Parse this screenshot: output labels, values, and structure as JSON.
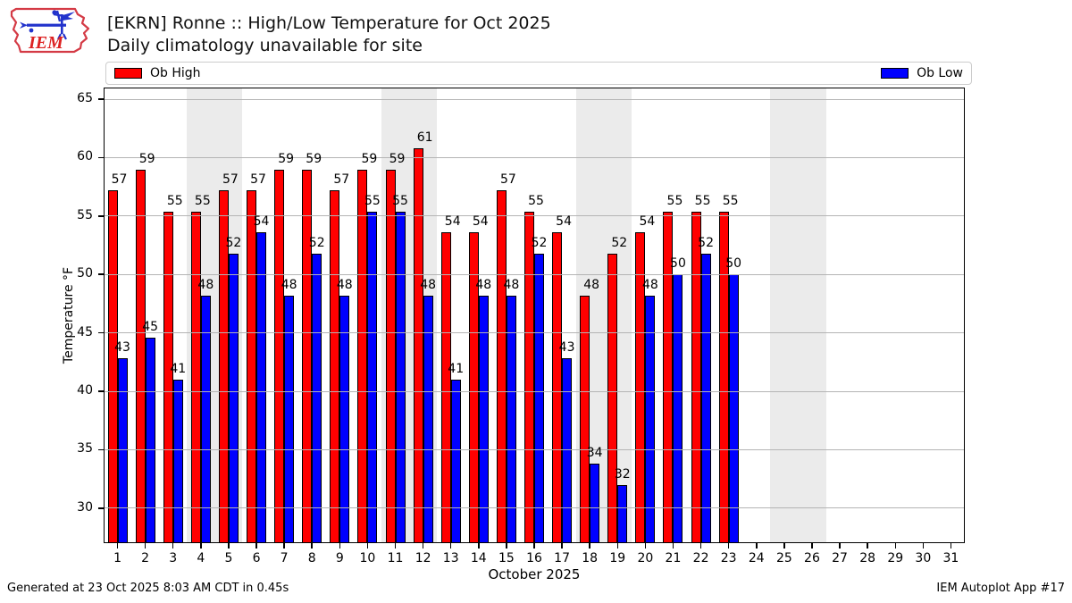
{
  "header": {
    "title": "[EKRN] Ronne :: High/Low Temperature for Oct 2025",
    "subtitle": "Daily climatology unavailable for site",
    "logo_text": "IEM"
  },
  "legend": {
    "high_label": "Ob High",
    "low_label": "Ob Low",
    "high_color": "#ff0000",
    "low_color": "#0000ff"
  },
  "footer": {
    "left": "Generated at 23 Oct 2025 8:03 AM CDT in 0.45s",
    "right": "IEM Autoplot App #17"
  },
  "chart_data": {
    "type": "bar",
    "title": "[EKRN] Ronne :: High/Low Temperature for Oct 2025",
    "subtitle": "Daily climatology unavailable for site",
    "xlabel": "October 2025",
    "ylabel": "Temperature °F",
    "ylim": [
      27,
      66
    ],
    "yticks": [
      30,
      35,
      40,
      45,
      50,
      55,
      60,
      65
    ],
    "num_days": 31,
    "grid": true,
    "legend_position": "top",
    "weekend_bands": [
      [
        4,
        5
      ],
      [
        11,
        12
      ],
      [
        18,
        19
      ],
      [
        25,
        26
      ]
    ],
    "colors": {
      "high": "#ff0000",
      "low": "#0000ff",
      "weekend_band": "#ebebeb",
      "gridline": "#b4b4b4"
    },
    "series_names": [
      "Ob High",
      "Ob Low"
    ],
    "days": [
      {
        "day": 1,
        "high": 57.2,
        "low": 42.8,
        "high_label": "57",
        "low_label": "43"
      },
      {
        "day": 2,
        "high": 59.0,
        "low": 44.6,
        "high_label": "59",
        "low_label": "45"
      },
      {
        "day": 3,
        "high": 55.4,
        "low": 41.0,
        "high_label": "55",
        "low_label": "41"
      },
      {
        "day": 4,
        "high": 55.4,
        "low": 48.2,
        "high_label": "55",
        "low_label": "48"
      },
      {
        "day": 5,
        "high": 57.2,
        "low": 51.8,
        "high_label": "57",
        "low_label": "52"
      },
      {
        "day": 6,
        "high": 57.2,
        "low": 53.6,
        "high_label": "57",
        "low_label": "54"
      },
      {
        "day": 7,
        "high": 59.0,
        "low": 48.2,
        "high_label": "59",
        "low_label": "48"
      },
      {
        "day": 8,
        "high": 59.0,
        "low": 51.8,
        "high_label": "59",
        "low_label": "52"
      },
      {
        "day": 9,
        "high": 57.2,
        "low": 48.2,
        "high_label": "57",
        "low_label": "48"
      },
      {
        "day": 10,
        "high": 59.0,
        "low": 55.4,
        "high_label": "59",
        "low_label": "55"
      },
      {
        "day": 11,
        "high": 59.0,
        "low": 55.4,
        "high_label": "59",
        "low_label": "55"
      },
      {
        "day": 12,
        "high": 60.8,
        "low": 48.2,
        "high_label": "61",
        "low_label": "48"
      },
      {
        "day": 13,
        "high": 53.6,
        "low": 41.0,
        "high_label": "54",
        "low_label": "41"
      },
      {
        "day": 14,
        "high": 53.6,
        "low": 48.2,
        "high_label": "54",
        "low_label": "48"
      },
      {
        "day": 15,
        "high": 57.2,
        "low": 48.2,
        "high_label": "57",
        "low_label": "48"
      },
      {
        "day": 16,
        "high": 55.4,
        "low": 51.8,
        "high_label": "55",
        "low_label": "52"
      },
      {
        "day": 17,
        "high": 53.6,
        "low": 42.8,
        "high_label": "54",
        "low_label": "43"
      },
      {
        "day": 18,
        "high": 48.2,
        "low": 33.8,
        "high_label": "48",
        "low_label": "34"
      },
      {
        "day": 19,
        "high": 51.8,
        "low": 32.0,
        "high_label": "52",
        "low_label": "32"
      },
      {
        "day": 20,
        "high": 53.6,
        "low": 48.2,
        "high_label": "54",
        "low_label": "48"
      },
      {
        "day": 21,
        "high": 55.4,
        "low": 50.0,
        "high_label": "55",
        "low_label": "50"
      },
      {
        "day": 22,
        "high": 55.4,
        "low": 51.8,
        "high_label": "55",
        "low_label": "52"
      },
      {
        "day": 23,
        "high": 55.4,
        "low": 50.0,
        "high_label": "55",
        "low_label": "50"
      },
      {
        "day": 24,
        "high": null,
        "low": null,
        "high_label": "",
        "low_label": ""
      },
      {
        "day": 25,
        "high": null,
        "low": null,
        "high_label": "",
        "low_label": ""
      },
      {
        "day": 26,
        "high": null,
        "low": null,
        "high_label": "",
        "low_label": ""
      },
      {
        "day": 27,
        "high": null,
        "low": null,
        "high_label": "",
        "low_label": ""
      },
      {
        "day": 28,
        "high": null,
        "low": null,
        "high_label": "",
        "low_label": ""
      },
      {
        "day": 29,
        "high": null,
        "low": null,
        "high_label": "",
        "low_label": ""
      },
      {
        "day": 30,
        "high": null,
        "low": null,
        "high_label": "",
        "low_label": ""
      },
      {
        "day": 31,
        "high": null,
        "low": null,
        "high_label": "",
        "low_label": ""
      }
    ]
  }
}
